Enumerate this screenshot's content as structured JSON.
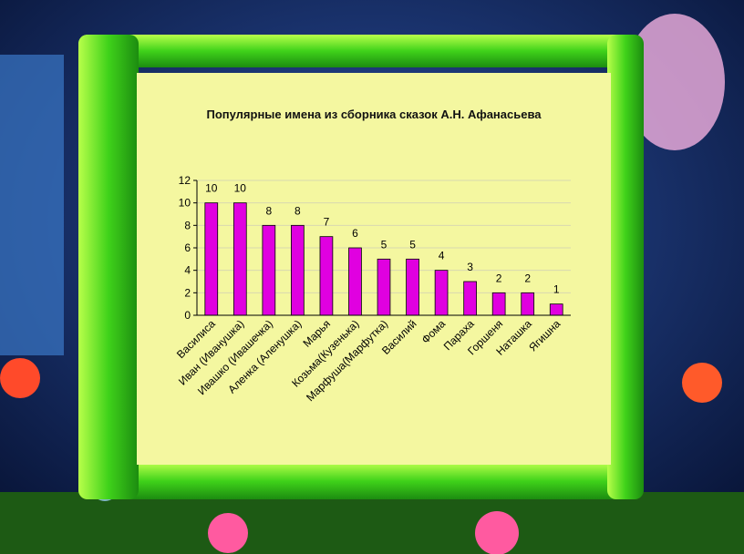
{
  "chart_data": {
    "type": "bar",
    "title": "Популярные имена из сборника сказок А.Н. Афанасьева",
    "categories": [
      "Василиса",
      "Иван (Иванушка)",
      "Ивашко (Ивашечка)",
      "Аленка (Аленушка)",
      "Марья",
      "Козьма(Кузенька)",
      "Марфуша(Марфутка)",
      "Василий",
      "Фома",
      "Параха",
      "Горшеня",
      "Наташка",
      "Ягишна"
    ],
    "values": [
      10,
      10,
      8,
      8,
      7,
      6,
      5,
      5,
      4,
      3,
      2,
      2,
      1
    ],
    "color": "#e000e0",
    "ylim": [
      0,
      12
    ],
    "yticks": [
      0,
      2,
      4,
      6,
      8,
      10,
      12
    ],
    "grid": true
  }
}
